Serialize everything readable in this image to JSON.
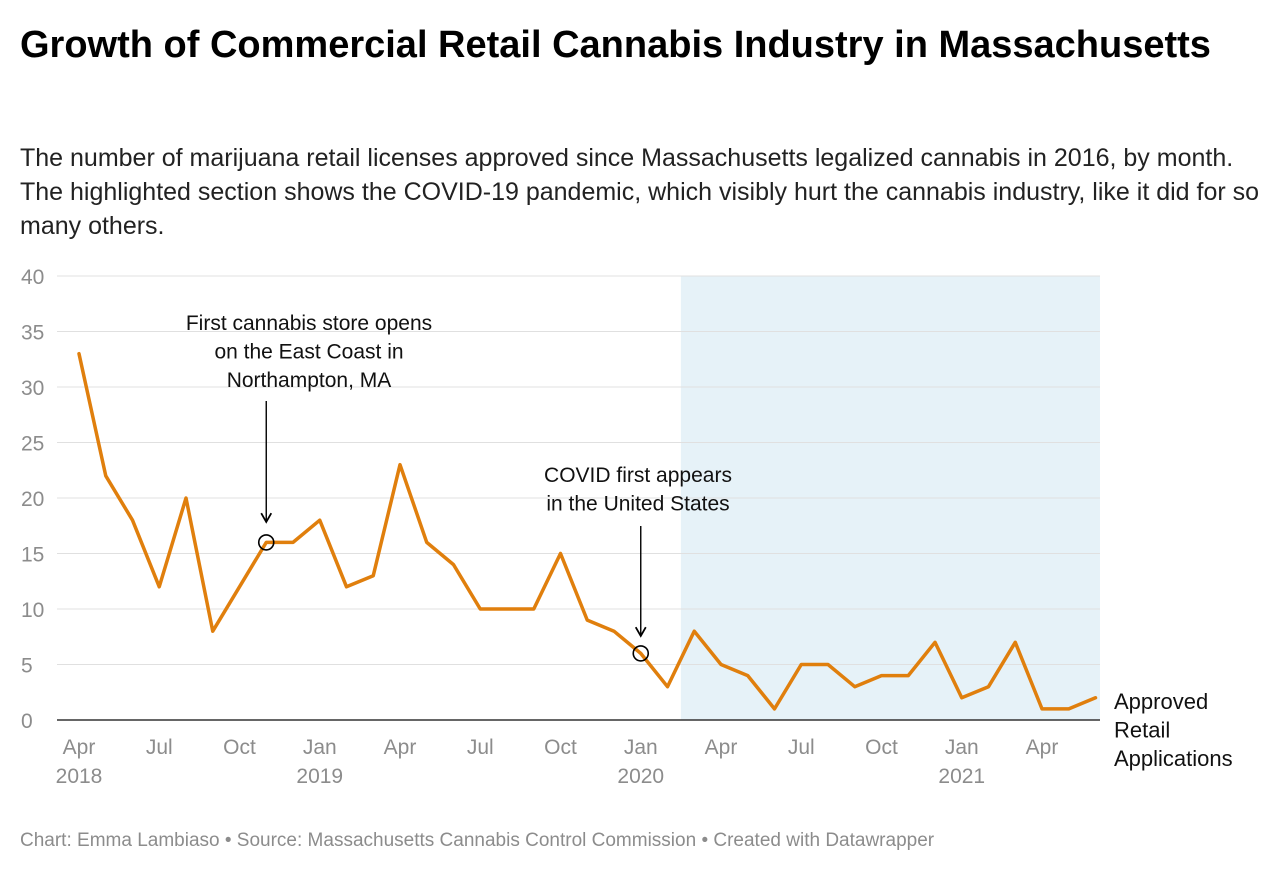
{
  "title": "Growth of Commercial Retail Cannabis Industry in Massachusetts",
  "subtitle": "The number of marijuana retail licenses approved since Massachusetts legalized cannabis in 2016, by month. The highlighted section shows the COVID-19 pandemic, which visibly hurt the cannabis industry, like it did for so many others.",
  "footer": {
    "author": "Chart: Emma Lambiaso",
    "separator": "•",
    "source": "Source: Massachusetts Cannabis Control Commission",
    "tool": "Created with Datawrapper"
  },
  "colors": {
    "line": "#e07f0d",
    "highlight": "#e6f2f8",
    "grid": "#e0e0e0",
    "tick": "#8c8c8c"
  },
  "chart_data": {
    "type": "line",
    "title": "Growth of Commercial Retail Cannabis Industry in Massachusetts",
    "xlabel": "",
    "ylabel": "",
    "ylim": [
      0,
      40
    ],
    "yticks": [
      0,
      5,
      10,
      15,
      20,
      25,
      30,
      35,
      40
    ],
    "grid": true,
    "x": [
      "2018-04",
      "2018-05",
      "2018-06",
      "2018-07",
      "2018-08",
      "2018-09",
      "2018-10",
      "2018-11",
      "2018-12",
      "2019-01",
      "2019-02",
      "2019-03",
      "2019-04",
      "2019-05",
      "2019-06",
      "2019-07",
      "2019-08",
      "2019-09",
      "2019-10",
      "2019-11",
      "2019-12",
      "2020-01",
      "2020-02",
      "2020-03",
      "2020-04",
      "2020-05",
      "2020-06",
      "2020-07",
      "2020-08",
      "2020-09",
      "2020-10",
      "2020-11",
      "2020-12",
      "2021-01",
      "2021-02",
      "2021-03",
      "2021-04",
      "2021-05",
      "2021-06"
    ],
    "series": [
      {
        "name": "Approved Retail Applications",
        "values": [
          33,
          22,
          18,
          12,
          20,
          8,
          12,
          16,
          16,
          18,
          12,
          13,
          23,
          16,
          14,
          10,
          10,
          10,
          15,
          9,
          8,
          6,
          3,
          8,
          5,
          4,
          1,
          5,
          5,
          3,
          4,
          4,
          7,
          2,
          3,
          7,
          1,
          1,
          2
        ]
      }
    ],
    "xticks": [
      {
        "month": "2018-04",
        "label": "Apr",
        "year": "2018"
      },
      {
        "month": "2018-07",
        "label": "Jul",
        "year": ""
      },
      {
        "month": "2018-10",
        "label": "Oct",
        "year": ""
      },
      {
        "month": "2019-01",
        "label": "Jan",
        "year": "2019"
      },
      {
        "month": "2019-04",
        "label": "Apr",
        "year": ""
      },
      {
        "month": "2019-07",
        "label": "Jul",
        "year": ""
      },
      {
        "month": "2019-10",
        "label": "Oct",
        "year": ""
      },
      {
        "month": "2020-01",
        "label": "Jan",
        "year": "2020"
      },
      {
        "month": "2020-04",
        "label": "Apr",
        "year": ""
      },
      {
        "month": "2020-07",
        "label": "Jul",
        "year": ""
      },
      {
        "month": "2020-10",
        "label": "Oct",
        "year": ""
      },
      {
        "month": "2021-01",
        "label": "Jan",
        "year": "2021"
      },
      {
        "month": "2021-04",
        "label": "Apr",
        "year": ""
      }
    ],
    "highlight": {
      "from": "2020-03",
      "to": "2021-06"
    },
    "series_label_lines": [
      "Approved",
      "Retail",
      "Applications"
    ],
    "annotations": [
      {
        "month": "2018-11",
        "value": 16,
        "lines": [
          "First cannabis store opens",
          "on the East Coast in",
          "Northampton, MA"
        ]
      },
      {
        "month": "2020-01",
        "value": 6,
        "lines": [
          "COVID first appears",
          "in the United States"
        ]
      }
    ]
  }
}
